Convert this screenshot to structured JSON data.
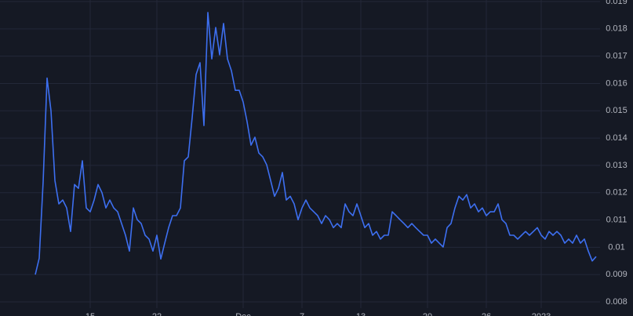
{
  "chart_data": {
    "type": "line",
    "series": [
      {
        "color": "#3d6ff0",
        "values": [
          0.009,
          0.0096,
          0.0124,
          0.0162,
          0.015,
          0.01245,
          0.01159,
          0.01173,
          0.01144,
          0.01058,
          0.0123,
          0.01216,
          0.01317,
          0.01144,
          0.0113,
          0.01173,
          0.0123,
          0.012,
          0.01144,
          0.01173,
          0.01144,
          0.0113,
          0.01087,
          0.01044,
          0.00986,
          0.01144,
          0.01101,
          0.01087,
          0.01044,
          0.0103,
          0.00986,
          0.01044,
          0.00957,
          0.01015,
          0.01072,
          0.01116,
          0.01116,
          0.01144,
          0.01317,
          0.01331,
          0.01475,
          0.01633,
          0.01676,
          0.01446,
          0.0186,
          0.0169,
          0.01805,
          0.01705,
          0.0182,
          0.0169,
          0.01647,
          0.01575,
          0.01575,
          0.01532,
          0.0146,
          0.01374,
          0.01403,
          0.01345,
          0.01331,
          0.01302,
          0.01245,
          0.01187,
          0.01216,
          0.01274,
          0.01173,
          0.01187,
          0.01159,
          0.01101,
          0.01144,
          0.01173,
          0.01144,
          0.0113,
          0.01116,
          0.01087,
          0.01116,
          0.01101,
          0.01072,
          0.01087,
          0.01072,
          0.01159,
          0.0113,
          0.01116,
          0.01159,
          0.01116,
          0.01072,
          0.01087,
          0.01044,
          0.01058,
          0.0103,
          0.01044,
          0.01044,
          0.0113,
          0.01116,
          0.01101,
          0.01087,
          0.01072,
          0.01087,
          0.01072,
          0.01058,
          0.01044,
          0.01044,
          0.01015,
          0.0103,
          0.01015,
          0.01001,
          0.01072,
          0.01087,
          0.01144,
          0.01187,
          0.01173,
          0.01193,
          0.01144,
          0.01159,
          0.0113,
          0.01144,
          0.01116,
          0.0113,
          0.0113,
          0.01159,
          0.01101,
          0.01087,
          0.01044,
          0.01044,
          0.0103,
          0.01044,
          0.01058,
          0.01044,
          0.01058,
          0.01072,
          0.01044,
          0.0103,
          0.01058,
          0.01044,
          0.01058,
          0.01044,
          0.01015,
          0.0103,
          0.01015,
          0.01044,
          0.01015,
          0.0103,
          0.00986,
          0.0095,
          0.00966
        ]
      }
    ],
    "xlim": [
      -9,
      144
    ],
    "xticks": [
      {
        "value": 14,
        "label": "15"
      },
      {
        "value": 31,
        "label": "22"
      },
      {
        "value": 53,
        "label": "Dec"
      },
      {
        "value": 68,
        "label": "7"
      },
      {
        "value": 83,
        "label": "13"
      },
      {
        "value": 100,
        "label": "20"
      },
      {
        "value": 115,
        "label": "26"
      },
      {
        "value": 129,
        "label": "2023"
      }
    ],
    "ylim": [
      0.008,
      0.019
    ],
    "yticks": [
      0.008,
      0.009,
      0.01,
      0.011,
      0.012,
      0.013,
      0.014,
      0.015,
      0.016,
      0.017,
      0.018,
      0.019
    ],
    "grid": true
  }
}
